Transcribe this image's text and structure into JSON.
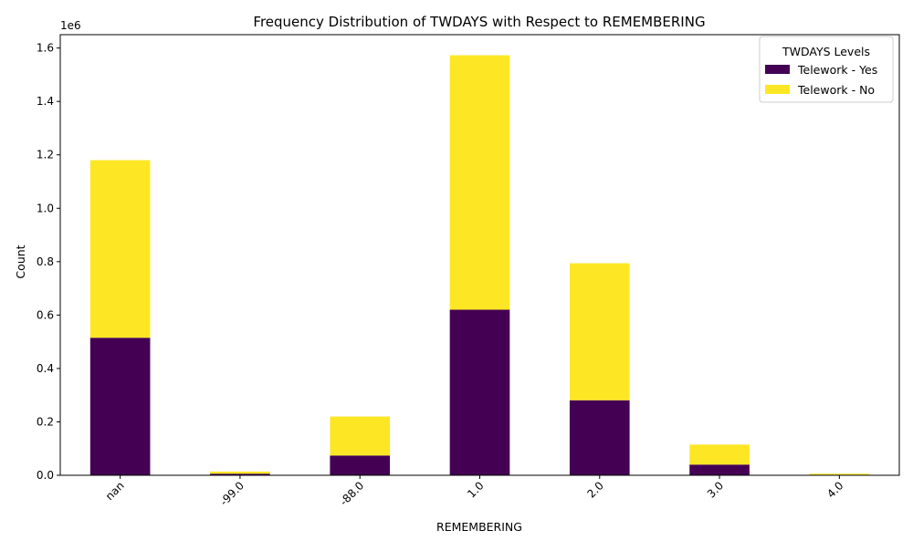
{
  "chart_data": {
    "type": "bar",
    "stacked": true,
    "title": "Frequency Distribution of TWDAYS with Respect to REMEMBERING",
    "xlabel": "REMEMBERING",
    "ylabel": "Count",
    "y_offset_text": "1e6",
    "ylim": [
      0,
      1.65
    ],
    "y_ticks": [
      0.0,
      0.2,
      0.4,
      0.6,
      0.8,
      1.0,
      1.2,
      1.4,
      1.6
    ],
    "y_tick_labels": [
      "0.0",
      "0.2",
      "0.4",
      "0.6",
      "0.8",
      "1.0",
      "1.2",
      "1.4",
      "1.6"
    ],
    "categories": [
      "nan",
      "-99.0",
      "-88.0",
      "1.0",
      "2.0",
      "3.0",
      "4.0"
    ],
    "series": [
      {
        "name": "Telework - Yes",
        "color": "#440154",
        "values": [
          0.515,
          0.006,
          0.074,
          0.62,
          0.281,
          0.04,
          0.002
        ]
      },
      {
        "name": "Telework - No",
        "color": "#fde725",
        "values": [
          0.665,
          0.008,
          0.146,
          0.953,
          0.513,
          0.075,
          0.004
        ]
      }
    ],
    "legend": {
      "title": "TWDAYS Levels",
      "placement": "top-right"
    },
    "grid": false
  }
}
